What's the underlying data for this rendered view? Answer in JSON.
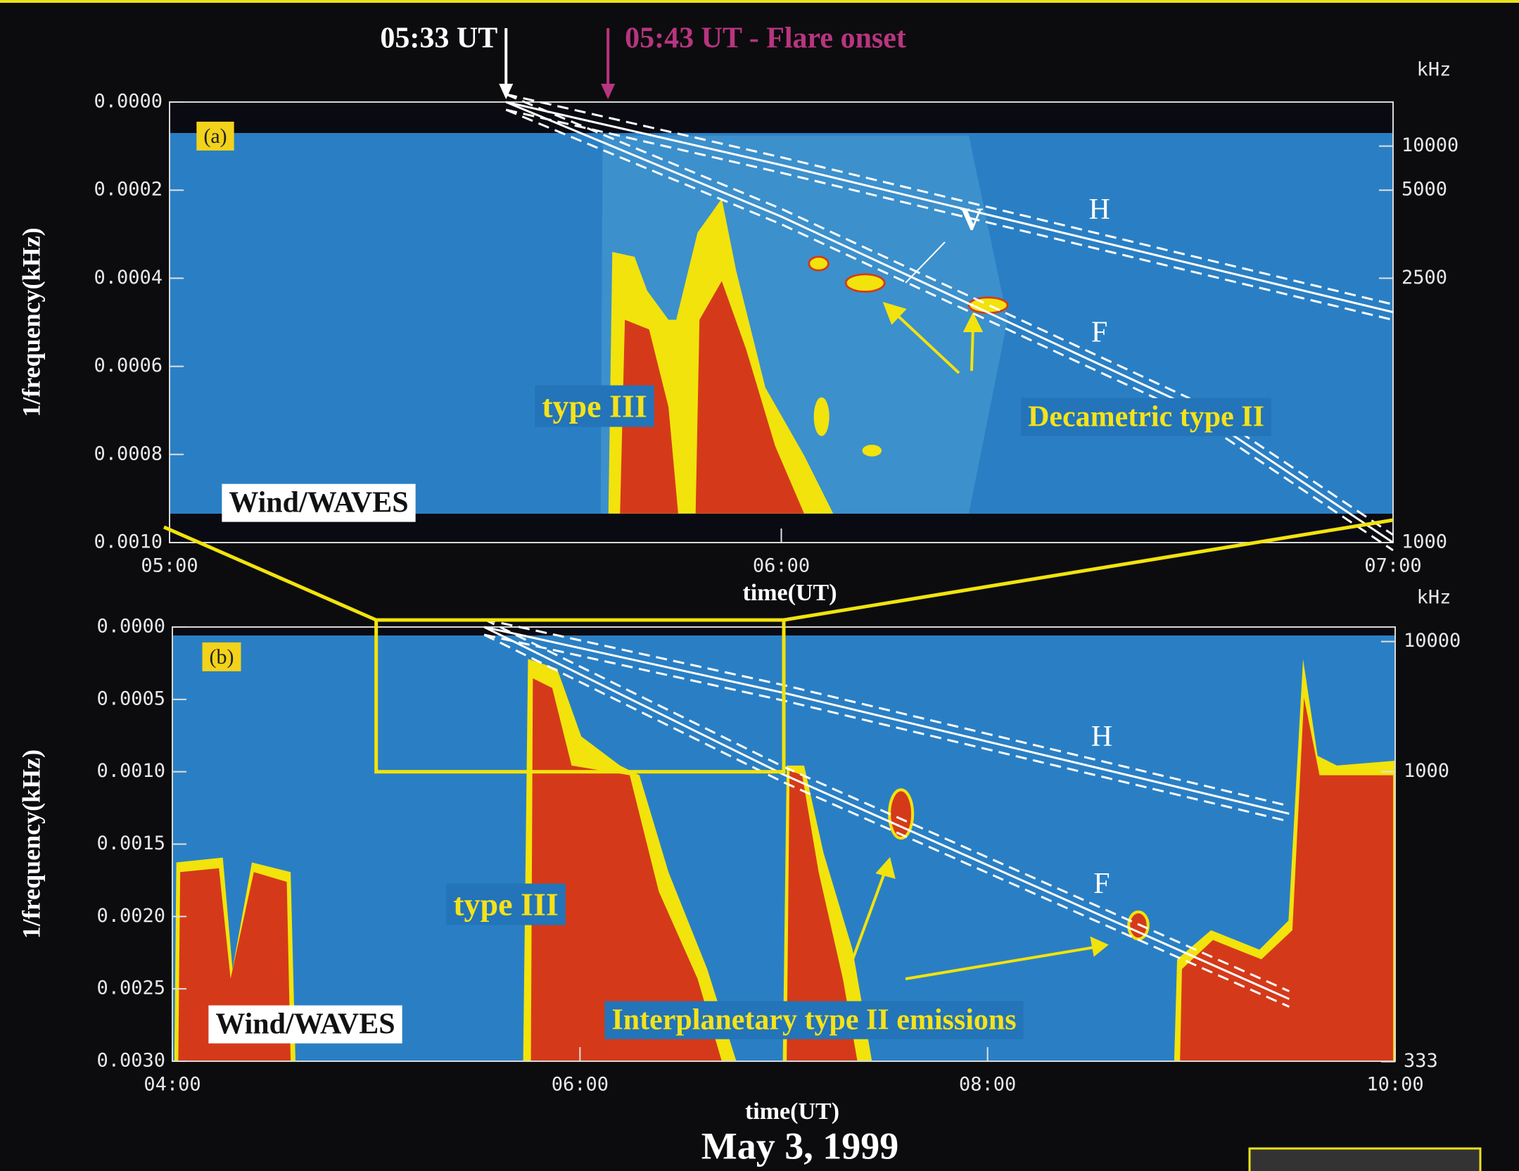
{
  "caption": "May 3, 1999",
  "chart_data": [
    {
      "type": "spectrogram",
      "panel_label": "(a)",
      "instrument": "Wind/WAVES",
      "xlabel": "time(UT)",
      "ylabel": "1/frequency(kHz)",
      "y2label": "kHz",
      "xlim": [
        5,
        7
      ],
      "xticks": [
        {
          "value": 5,
          "label": "05:00"
        },
        {
          "value": 6,
          "label": "06:00"
        },
        {
          "value": 7,
          "label": "07:00"
        }
      ],
      "ylim": [
        0,
        0.001
      ],
      "yticks": [
        {
          "value": 0,
          "label": "0.0000"
        },
        {
          "value": 0.0002,
          "label": "0.0002"
        },
        {
          "value": 0.0004,
          "label": "0.0004"
        },
        {
          "value": 0.0006,
          "label": "0.0006"
        },
        {
          "value": 0.0008,
          "label": "0.0008"
        },
        {
          "value": 0.001,
          "label": "0.0010"
        }
      ],
      "y2_scale": "reciprocal",
      "y2ticks": [
        10000,
        5000,
        2500,
        1000
      ],
      "series": [
        {
          "name": "H",
          "color": "#ffffff",
          "x": [
            5.55,
            6.0,
            7.0
          ],
          "values": [
            0,
            0.000143,
            0.000477
          ]
        },
        {
          "name": "F",
          "color": "#ffffff",
          "x": [
            5.55,
            6.0,
            6.667,
            7.0
          ],
          "values": [
            0,
            0.00026,
            0.00069,
            0.001
          ]
        }
      ],
      "annotations": [
        {
          "text": "05:33 UT",
          "x": 5.55,
          "color": "#ffffff"
        },
        {
          "text": "05:43 UT - Flare onset",
          "x": 5.7167,
          "color": "#b8357f"
        },
        {
          "text": "type III",
          "color": "#f5e21a"
        },
        {
          "text": "Decametric type II",
          "color": "#f5e21a"
        },
        {
          "text": "V",
          "color": "#ffffff"
        }
      ]
    },
    {
      "type": "spectrogram",
      "panel_label": "(b)",
      "instrument": "Wind/WAVES",
      "xlabel": "time(UT)",
      "ylabel": "1/frequency(kHz)",
      "y2label": "kHz",
      "xlim": [
        4,
        10
      ],
      "xticks": [
        {
          "value": 4,
          "label": "04:00"
        },
        {
          "value": 6,
          "label": "06:00"
        },
        {
          "value": 8,
          "label": "08:00"
        },
        {
          "value": 10,
          "label": "10:00"
        }
      ],
      "ylim": [
        0,
        0.003
      ],
      "yticks": [
        {
          "value": 0,
          "label": "0.0000"
        },
        {
          "value": 0.0005,
          "label": "0.0005"
        },
        {
          "value": 0.001,
          "label": "0.0010"
        },
        {
          "value": 0.0015,
          "label": "0.0015"
        },
        {
          "value": 0.002,
          "label": "0.0020"
        },
        {
          "value": 0.0025,
          "label": "0.0025"
        },
        {
          "value": 0.003,
          "label": "0.0030"
        }
      ],
      "y2_scale": "reciprocal",
      "y2ticks": [
        10000,
        1000,
        333
      ],
      "zoom_box": true,
      "series": [
        {
          "name": "H",
          "color": "#ffffff",
          "x": [
            5.53,
            7.0,
            9.48
          ],
          "values": [
            0,
            0.000455,
            0.00129
          ]
        },
        {
          "name": "F",
          "color": "#ffffff",
          "x": [
            5.53,
            7.0,
            9.48
          ],
          "values": [
            0,
            0.00102,
            0.00257
          ]
        }
      ],
      "annotations": [
        {
          "text": "type III",
          "color": "#f5e21a"
        },
        {
          "text": "Interplanetary type II emissions",
          "color": "#f5e21a"
        }
      ]
    }
  ]
}
